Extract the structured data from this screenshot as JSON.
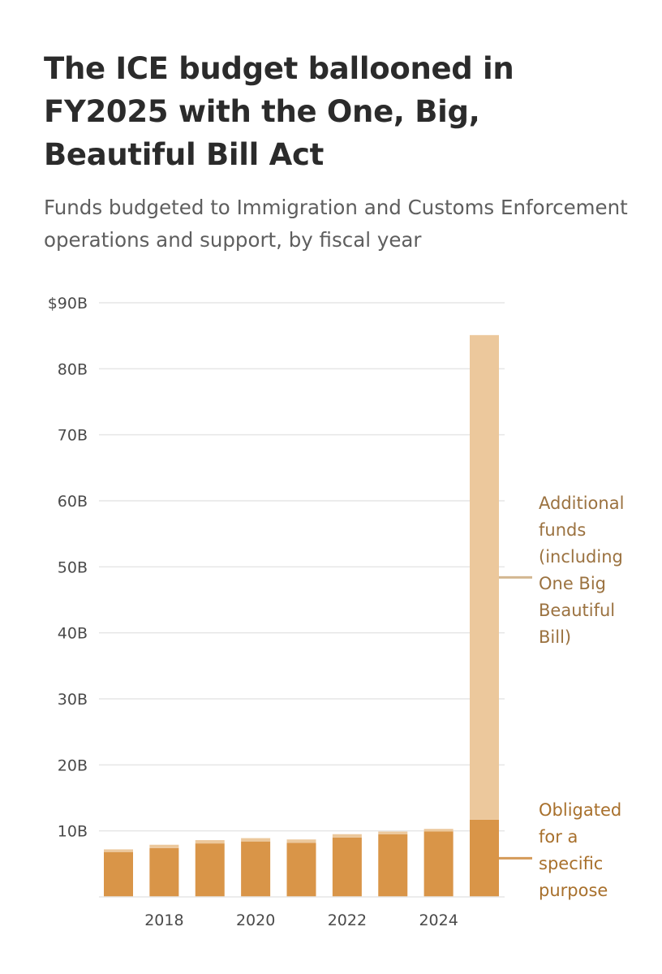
{
  "title": "The ICE budget ballooned in FY2025 with the One, Big, Beautiful Bill Act",
  "subtitle": "Funds budgeted to Immigration and Customs Enforcement operations and support, by fiscal year",
  "colors": {
    "obligated": "#d99548",
    "additional": "#ecc89c",
    "grid": "#e6e6e6",
    "tick_text": "#4a4a4a",
    "annotation_text_additional": "#9b7240",
    "annotation_text_obligated": "#a8702c",
    "annotation_line_additional": "#d3b791",
    "annotation_line_obligated": "#d49a58"
  },
  "chart_data": {
    "type": "bar",
    "stacked": true,
    "categories": [
      "2017",
      "2018",
      "2019",
      "2020",
      "2021",
      "2022",
      "2023",
      "2024",
      "2025"
    ],
    "x_tick_labels": [
      {
        "category": "2018",
        "label": "2018"
      },
      {
        "category": "2020",
        "label": "2020"
      },
      {
        "category": "2022",
        "label": "2022"
      },
      {
        "category": "2024",
        "label": "2024"
      }
    ],
    "series": [
      {
        "name": "Obligated for a specific purpose",
        "color": "#d99548",
        "values": [
          6.8,
          7.4,
          8.1,
          8.4,
          8.2,
          9.0,
          9.5,
          9.9,
          11.7
        ]
      },
      {
        "name": "Additional funds (including One Big Beautiful Bill)",
        "color": "#ecc89c",
        "values": [
          0.4,
          0.5,
          0.5,
          0.5,
          0.5,
          0.5,
          0.4,
          0.4,
          73.4
        ]
      }
    ],
    "ylim": [
      0,
      90
    ],
    "y_ticks": [
      {
        "value": 10,
        "label": "10B"
      },
      {
        "value": 20,
        "label": "20B"
      },
      {
        "value": 30,
        "label": "30B"
      },
      {
        "value": 40,
        "label": "40B"
      },
      {
        "value": 50,
        "label": "50B"
      },
      {
        "value": 60,
        "label": "60B"
      },
      {
        "value": 70,
        "label": "70B"
      },
      {
        "value": 80,
        "label": "80B"
      },
      {
        "value": 90,
        "label": "$90B"
      }
    ],
    "grid": true,
    "annotations": [
      {
        "series": 1,
        "lines": [
          "Additional",
          "funds",
          "(including",
          "One Big",
          "Beautiful",
          "Bill)"
        ]
      },
      {
        "series": 0,
        "lines": [
          "Obligated",
          "for a",
          "specific",
          "purpose"
        ]
      }
    ]
  }
}
